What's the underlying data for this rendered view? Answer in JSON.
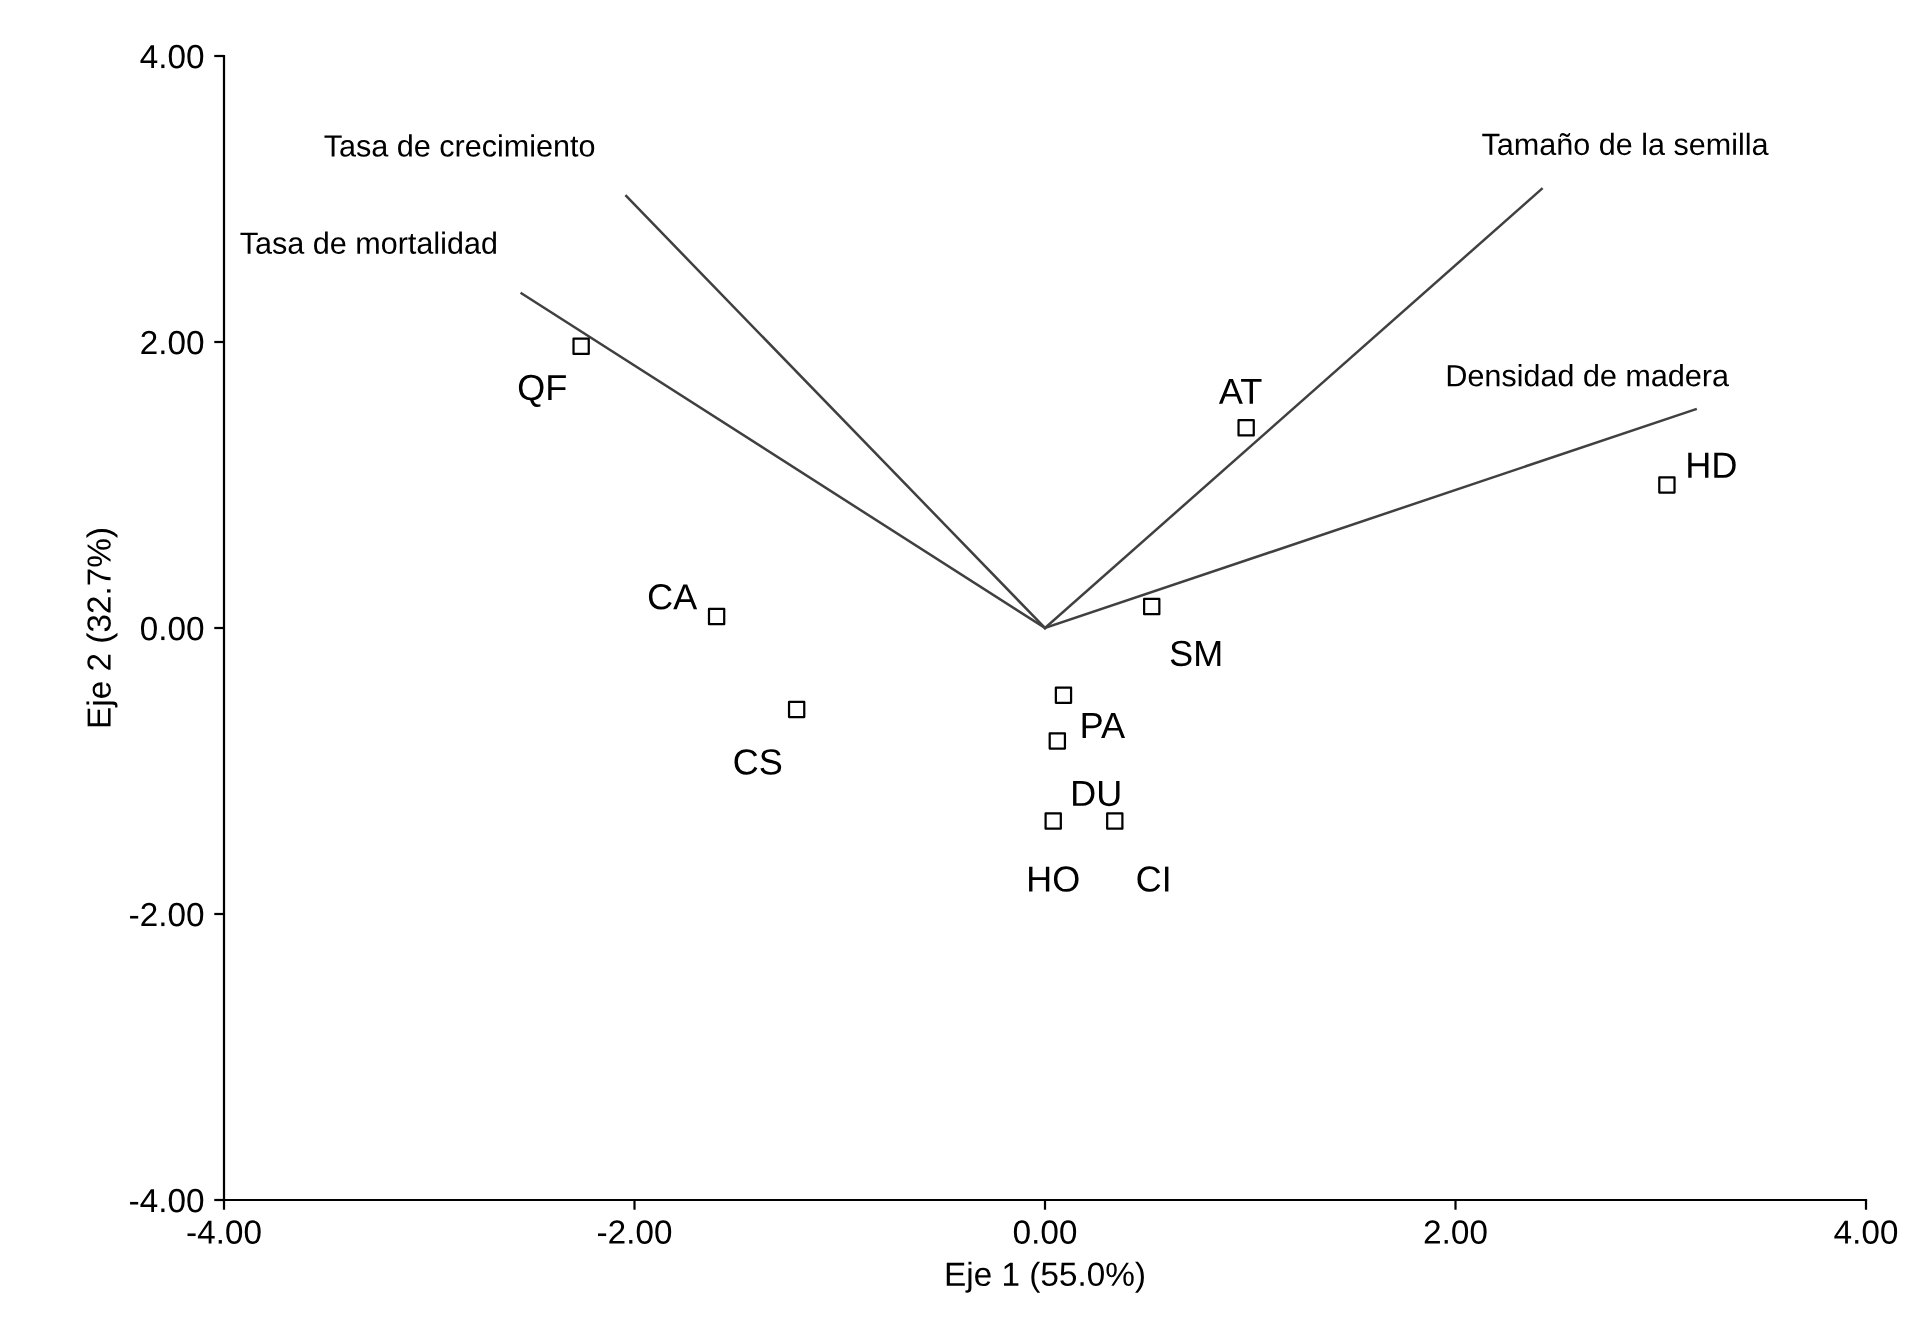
{
  "chart_data": {
    "type": "scatter",
    "xlabel": "Eje 1 (55.0%)",
    "ylabel": "Eje 2 (32.7%)",
    "xlim": [
      -4,
      4
    ],
    "ylim": [
      -4,
      4
    ],
    "xticks": [
      {
        "value": -4,
        "label": "-4.00"
      },
      {
        "value": -2,
        "label": "-2.00"
      },
      {
        "value": 0,
        "label": "0.00"
      },
      {
        "value": 2,
        "label": "2.00"
      },
      {
        "value": 4,
        "label": "4.00"
      }
    ],
    "yticks": [
      {
        "value": -4,
        "label": "-4.00"
      },
      {
        "value": -2,
        "label": "-2.00"
      },
      {
        "value": 0,
        "label": "0.00"
      },
      {
        "value": 2,
        "label": "2.00"
      },
      {
        "value": 4,
        "label": "4.00"
      }
    ],
    "grid": false,
    "legend": false,
    "marker": "square",
    "series": [
      {
        "color": "#000000",
        "x": [
          -2.26,
          -1.6,
          -1.21,
          0.09,
          0.06,
          0.04,
          0.34,
          0.52,
          0.98,
          3.03
        ],
        "values": [
          1.97,
          0.08,
          -0.57,
          -0.47,
          -0.79,
          -1.35,
          -1.35,
          0.15,
          1.4,
          1.0
        ]
      },
      {
        "type": "line",
        "name": "Tasa de crecimiento",
        "color": "#404040",
        "marker": "none",
        "x": [
          0,
          -2.04
        ],
        "values": [
          0,
          3.02
        ]
      },
      {
        "type": "line",
        "name": "Tasa de mortalidad",
        "color": "#404040",
        "marker": "none",
        "x": [
          0,
          -2.55
        ],
        "values": [
          0,
          2.34
        ]
      },
      {
        "type": "line",
        "name": "Tamaño de la semilla",
        "color": "#404040",
        "marker": "none",
        "x": [
          0,
          2.42
        ],
        "values": [
          0,
          3.07
        ]
      },
      {
        "type": "line",
        "name": "Densidad de madera",
        "color": "#404040",
        "marker": "none",
        "x": [
          0,
          3.17
        ],
        "values": [
          0,
          1.53
        ]
      }
    ],
    "annotations": [
      {
        "text": "QF",
        "x": -2.26,
        "y": 1.97
      },
      {
        "text": "CA",
        "x": -1.6,
        "y": 0.08
      },
      {
        "text": "CS",
        "x": -1.21,
        "y": -0.57
      },
      {
        "text": "PA",
        "x": 0.09,
        "y": -0.47
      },
      {
        "text": "DU",
        "x": 0.06,
        "y": -0.79
      },
      {
        "text": "HO",
        "x": 0.04,
        "y": -1.35
      },
      {
        "text": "CI",
        "x": 0.34,
        "y": -1.35
      },
      {
        "text": "SM",
        "x": 0.52,
        "y": 0.15
      },
      {
        "text": "AT",
        "x": 0.98,
        "y": 1.4
      },
      {
        "text": "HD",
        "x": 3.03,
        "y": 1.0
      }
    ]
  }
}
